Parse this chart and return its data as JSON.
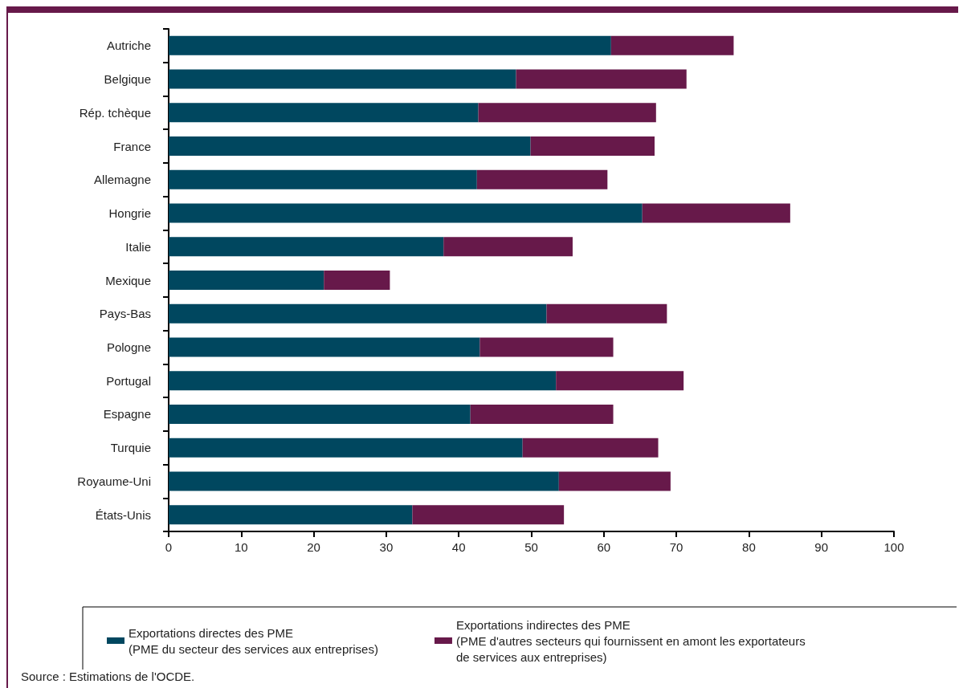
{
  "chart_data": {
    "type": "bar",
    "orientation": "horizontal",
    "stacked": true,
    "categories": [
      "Autriche",
      "Belgique",
      "Rép. tchèque",
      "France",
      "Allemagne",
      "Hongrie",
      "Italie",
      "Mexique",
      "Pays-Bas",
      "Pologne",
      "Portugal",
      "Espagne",
      "Turquie",
      "Royaume-Uni",
      "États-Unis"
    ],
    "series": [
      {
        "name": "Exportations directes des PME\n(PME du secteur des services aux entreprises)",
        "color": "#00475f",
        "values": [
          61.0,
          47.9,
          42.7,
          49.9,
          42.5,
          65.3,
          37.9,
          21.4,
          52.1,
          42.9,
          53.4,
          41.6,
          48.8,
          53.8,
          33.6
        ]
      },
      {
        "name": "Exportations indirectes des PME\n(PME d'autres secteurs qui fournissent en amont les exportateurs\nde services aux entreprises)",
        "color": "#67194a",
        "values": [
          16.9,
          23.5,
          24.5,
          17.1,
          18.0,
          20.4,
          17.8,
          9.1,
          16.6,
          18.4,
          17.6,
          19.7,
          18.7,
          15.4,
          20.9
        ]
      }
    ],
    "xlim": [
      0,
      100
    ],
    "xticks": [
      0,
      10,
      20,
      30,
      40,
      50,
      60,
      70,
      80,
      90,
      100
    ],
    "grid": false,
    "legend": "bottom",
    "annotations": [
      "Source : Estimations de l'OCDE."
    ]
  }
}
